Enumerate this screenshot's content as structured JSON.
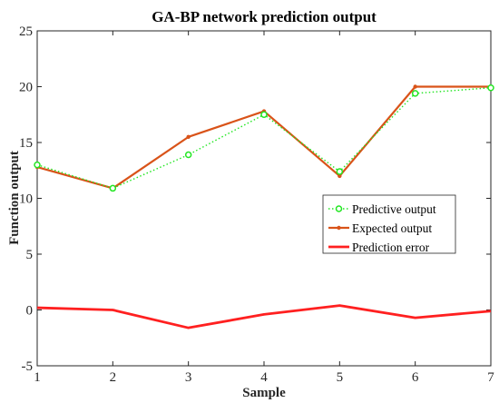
{
  "chart_data": {
    "type": "line",
    "title": "GA-BP network prediction output",
    "xlabel": "Sample",
    "ylabel": "Function output",
    "x": [
      1,
      2,
      3,
      4,
      5,
      6,
      7
    ],
    "xlim": [
      1,
      7
    ],
    "ylim": [
      -5,
      25
    ],
    "xticks": [
      1,
      2,
      3,
      4,
      5,
      6,
      7
    ],
    "yticks": [
      -5,
      0,
      5,
      10,
      15,
      20,
      25
    ],
    "grid": false,
    "legend_position": "right",
    "series": [
      {
        "name": "Predictive output",
        "values": [
          13.0,
          10.9,
          13.9,
          17.5,
          12.4,
          19.4,
          19.9
        ],
        "color": "#22e622",
        "line_style": "dotted",
        "marker": "circle"
      },
      {
        "name": "Expected output",
        "values": [
          12.8,
          10.9,
          15.5,
          17.8,
          12.0,
          20.0,
          20.0
        ],
        "color": "#d95319",
        "line_style": "solid",
        "marker": "dot"
      },
      {
        "name": "Prediction error",
        "values": [
          0.2,
          0.0,
          -1.6,
          -0.4,
          0.4,
          -0.7,
          -0.1
        ],
        "color": "#ff2020",
        "line_style": "solid-thick",
        "marker": "none"
      }
    ]
  }
}
